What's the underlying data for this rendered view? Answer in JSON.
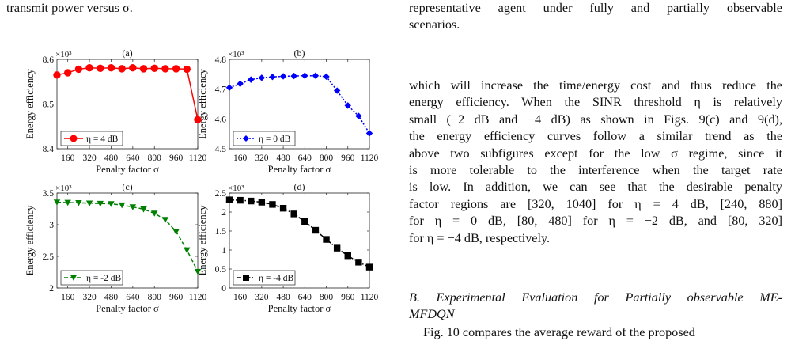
{
  "top_left_text": "transmit power versus σ.",
  "top_right_lines": [
    "representative agent under fully and partially observable",
    "scenarios."
  ],
  "body_lines": [
    "which will increase the time/energy cost and thus reduce the",
    "energy efficiency. When the SINR threshold η is relatively",
    "small (−2 dB and −4 dB) as shown in Figs. 9(c) and 9(d),",
    "the energy efficiency curves follow a similar trend as the",
    "above two subfigures except for the low σ regime, since it",
    "is more tolerable to the interference when the target rate",
    "is low. In addition, we can see that the desirable penalty",
    "factor regions are [320, 1040] for η = 4 dB, [240, 880]",
    "for η = 0 dB, [80, 480] for η = −2 dB, and [80, 320]",
    "for η = −4 dB, respectively."
  ],
  "section_heading": "B. Experimental Evaluation for Partially observable ME-MFDQN",
  "section_heading_lines": [
    "B. Experimental Evaluation for Partially observable ME-",
    "MFDQN"
  ],
  "para2_start": "Fig. 10 compares the average reward of the proposed",
  "chart_data": [
    {
      "id": "a",
      "type": "line",
      "title": "(a)",
      "xlabel": "Penalty factor σ",
      "ylabel": "Energy efficiency",
      "multiplier": "×10³",
      "x": [
        80,
        160,
        240,
        320,
        400,
        480,
        560,
        640,
        720,
        800,
        880,
        960,
        1040,
        1120
      ],
      "series": [
        {
          "name": "η = 4 dB",
          "color": "#ff0000",
          "marker": "circle",
          "dash": "solid",
          "values": [
            8.565,
            8.57,
            8.578,
            8.581,
            8.58,
            8.581,
            8.579,
            8.581,
            8.579,
            8.58,
            8.579,
            8.579,
            8.578,
            8.465
          ]
        }
      ],
      "ylim": [
        8.4,
        8.6
      ],
      "yticks": [
        8.4,
        8.5,
        8.6
      ],
      "ytick_labels": [
        "8.4",
        "8.5",
        "8.6"
      ],
      "xticks": [
        160,
        320,
        480,
        640,
        800,
        960,
        1120
      ],
      "xtick_labels": [
        "160",
        "320",
        "480",
        "640",
        "800",
        "960",
        "1120"
      ],
      "xlim": [
        80,
        1120
      ],
      "legend": "bottom-left"
    },
    {
      "id": "b",
      "type": "line",
      "title": "(b)",
      "xlabel": "Penalty factor σ",
      "ylabel": "Energy efficiency",
      "multiplier": "×10³",
      "x": [
        80,
        160,
        240,
        320,
        400,
        480,
        560,
        640,
        720,
        800,
        880,
        960,
        1040,
        1120
      ],
      "series": [
        {
          "name": "η = 0 dB",
          "color": "#0000ff",
          "marker": "diamond",
          "dash": "dotted",
          "values": [
            4.705,
            4.718,
            4.732,
            4.738,
            4.741,
            4.743,
            4.744,
            4.745,
            4.745,
            4.742,
            4.695,
            4.645,
            4.61,
            4.552
          ]
        }
      ],
      "ylim": [
        4.5,
        4.8
      ],
      "yticks": [
        4.5,
        4.6,
        4.7,
        4.8
      ],
      "ytick_labels": [
        "4.5",
        "4.6",
        "4.7",
        "4.8"
      ],
      "xticks": [
        160,
        320,
        480,
        640,
        800,
        960,
        1120
      ],
      "xtick_labels": [
        "160",
        "320",
        "480",
        "640",
        "800",
        "960",
        "1120"
      ],
      "xlim": [
        80,
        1120
      ],
      "legend": "bottom-left"
    },
    {
      "id": "c",
      "type": "line",
      "title": "(c)",
      "xlabel": "Penalty factor σ",
      "ylabel": "Energy efficiency",
      "multiplier": "×10³",
      "x": [
        80,
        160,
        240,
        320,
        400,
        480,
        560,
        640,
        720,
        800,
        880,
        960,
        1040,
        1120
      ],
      "series": [
        {
          "name": "η = -2 dB",
          "color": "#008000",
          "marker": "triangle-down",
          "dash": "dashed",
          "values": [
            3.355,
            3.35,
            3.345,
            3.34,
            3.335,
            3.33,
            3.31,
            3.28,
            3.245,
            3.18,
            3.08,
            2.89,
            2.6,
            2.26
          ]
        }
      ],
      "ylim": [
        2,
        3.5
      ],
      "yticks": [
        2,
        2.5,
        3,
        3.5
      ],
      "ytick_labels": [
        "2",
        "2.5",
        "3",
        "3.5"
      ],
      "xticks": [
        160,
        320,
        480,
        640,
        800,
        960,
        1120
      ],
      "xtick_labels": [
        "160",
        "320",
        "480",
        "640",
        "800",
        "960",
        "1120"
      ],
      "xlim": [
        80,
        1120
      ],
      "legend": "bottom-left"
    },
    {
      "id": "d",
      "type": "line",
      "title": "(d)",
      "xlabel": "Penalty factor σ",
      "ylabel": "Energy efficiency",
      "multiplier": "×10³",
      "x": [
        80,
        160,
        240,
        320,
        400,
        480,
        560,
        640,
        720,
        800,
        880,
        960,
        1040,
        1120
      ],
      "series": [
        {
          "name": "η = -4 dB",
          "color": "#000000",
          "marker": "square",
          "dash": "dashdot",
          "values": [
            2.32,
            2.31,
            2.29,
            2.26,
            2.2,
            2.1,
            1.95,
            1.75,
            1.52,
            1.28,
            1.05,
            0.85,
            0.68,
            0.55
          ]
        }
      ],
      "ylim": [
        0,
        2.5
      ],
      "yticks": [
        0,
        0.5,
        1,
        1.5,
        2,
        2.5
      ],
      "ytick_labels": [
        "0",
        "0.5",
        "1",
        "1.5",
        "2",
        "2.5"
      ],
      "xticks": [
        160,
        320,
        480,
        640,
        800,
        960,
        1120
      ],
      "xtick_labels": [
        "160",
        "320",
        "480",
        "640",
        "800",
        "960",
        "1120"
      ],
      "xlim": [
        80,
        1120
      ],
      "legend": "bottom-left"
    }
  ]
}
